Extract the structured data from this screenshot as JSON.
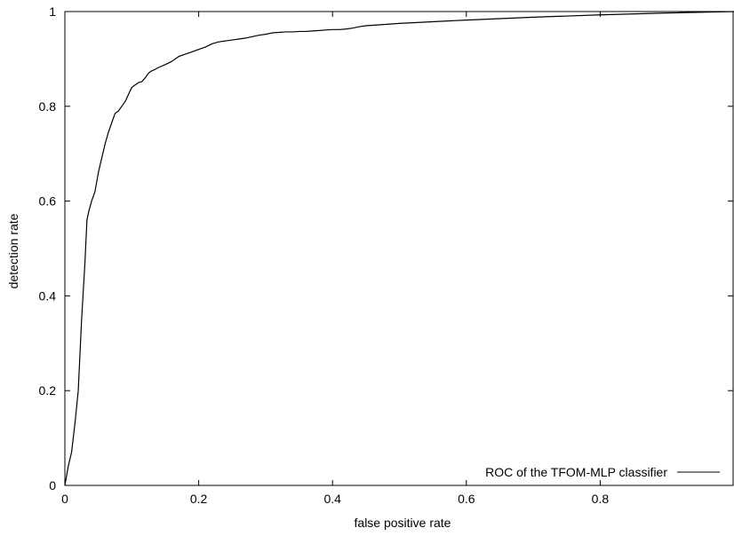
{
  "chart_data": {
    "type": "line",
    "title": "",
    "xlabel": "false positive rate",
    "ylabel": "detection rate",
    "xlim": [
      0,
      1
    ],
    "ylim": [
      0,
      1
    ],
    "x_ticks": [
      {
        "value": 0,
        "label": "0"
      },
      {
        "value": 0.2,
        "label": "0.2"
      },
      {
        "value": 0.4,
        "label": "0.4"
      },
      {
        "value": 0.6,
        "label": "0.6"
      },
      {
        "value": 0.8,
        "label": "0.8"
      }
    ],
    "y_ticks": [
      {
        "value": 0,
        "label": "0"
      },
      {
        "value": 0.2,
        "label": "0.2"
      },
      {
        "value": 0.4,
        "label": "0.4"
      },
      {
        "value": 0.6,
        "label": "0.6"
      },
      {
        "value": 0.8,
        "label": "0.8"
      },
      {
        "value": 1,
        "label": "1"
      }
    ],
    "grid": false,
    "legend_position": "bottom-right",
    "series": [
      {
        "name": "ROC of the TFOM-MLP classifier",
        "color": "#000000",
        "x": [
          0,
          0.005,
          0.01,
          0.015,
          0.02,
          0.025,
          0.03,
          0.033,
          0.036,
          0.04,
          0.045,
          0.05,
          0.055,
          0.06,
          0.065,
          0.07,
          0.075,
          0.08,
          0.085,
          0.09,
          0.095,
          0.1,
          0.105,
          0.11,
          0.115,
          0.12,
          0.125,
          0.13,
          0.135,
          0.14,
          0.15,
          0.16,
          0.17,
          0.18,
          0.19,
          0.2,
          0.21,
          0.22,
          0.23,
          0.24,
          0.25,
          0.26,
          0.27,
          0.28,
          0.29,
          0.3,
          0.31,
          0.32,
          0.33,
          0.34,
          0.35,
          0.36,
          0.37,
          0.38,
          0.39,
          0.4,
          0.41,
          0.42,
          0.43,
          0.44,
          0.45,
          0.5,
          0.6,
          0.7,
          0.8,
          0.9,
          1.0
        ],
        "y": [
          0,
          0.04,
          0.07,
          0.13,
          0.2,
          0.35,
          0.47,
          0.56,
          0.58,
          0.6,
          0.62,
          0.66,
          0.69,
          0.72,
          0.745,
          0.765,
          0.785,
          0.79,
          0.8,
          0.81,
          0.825,
          0.84,
          0.845,
          0.85,
          0.852,
          0.86,
          0.87,
          0.875,
          0.878,
          0.882,
          0.888,
          0.895,
          0.905,
          0.91,
          0.915,
          0.92,
          0.925,
          0.932,
          0.936,
          0.938,
          0.94,
          0.942,
          0.944,
          0.947,
          0.95,
          0.952,
          0.955,
          0.956,
          0.957,
          0.957,
          0.958,
          0.958,
          0.959,
          0.96,
          0.961,
          0.962,
          0.962,
          0.963,
          0.965,
          0.968,
          0.97,
          0.975,
          0.982,
          0.988,
          0.993,
          0.997,
          1.0
        ]
      }
    ]
  }
}
